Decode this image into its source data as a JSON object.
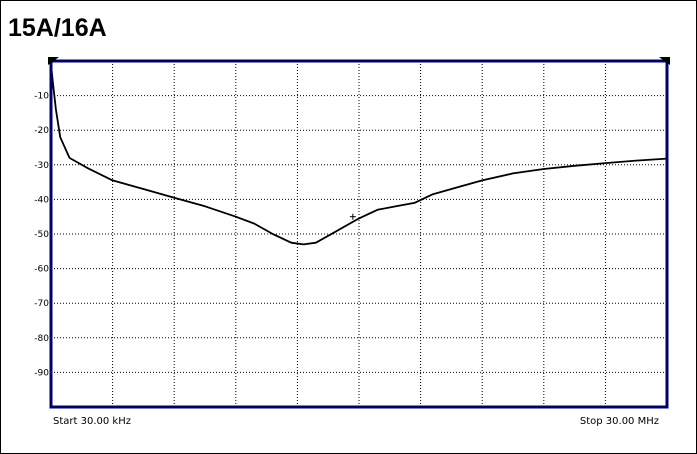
{
  "chart_data": {
    "type": "line",
    "title": "15A/16A",
    "x_start_label": "Start 30.00 kHz",
    "x_stop_label": "Stop 30.00 MHz",
    "xlim": [
      0,
      10
    ],
    "ylim": [
      -100,
      0
    ],
    "y_ticks": [
      -10,
      -20,
      -30,
      -40,
      -50,
      -60,
      -70,
      -80,
      -90
    ],
    "y_tick_labels": [
      "-10",
      "-20",
      "-30",
      "-40",
      "-50",
      "-60",
      "-70",
      "-80",
      "-90"
    ],
    "grid": true,
    "grid_style": "dotted",
    "series": [
      {
        "color": "#000000",
        "x": [
          0,
          0.03,
          0.08,
          0.15,
          0.3,
          0.6,
          1.0,
          1.5,
          2.0,
          2.5,
          3.0,
          3.3,
          3.6,
          3.9,
          4.1,
          4.3,
          4.6,
          5.0,
          5.3,
          5.6,
          5.9,
          6.2,
          6.6,
          7.0,
          7.5,
          8.0,
          8.5,
          9.0,
          9.5,
          10.0
        ],
        "y": [
          -1,
          -6,
          -14,
          -22,
          -28,
          -31,
          -34.5,
          -37,
          -39.5,
          -42,
          -45,
          -47,
          -50,
          -52.5,
          -53,
          -52.5,
          -49.5,
          -45.5,
          -43,
          -42,
          -41,
          -38.5,
          -36.5,
          -34.5,
          -32.5,
          -31.2,
          -30.3,
          -29.5,
          -28.8,
          -28.2
        ]
      }
    ],
    "markers": [
      {
        "x": 4.9,
        "y": -45
      }
    ]
  },
  "colors": {
    "plot_border": "#00006e",
    "trace": "#000000",
    "grid": "#000000"
  }
}
